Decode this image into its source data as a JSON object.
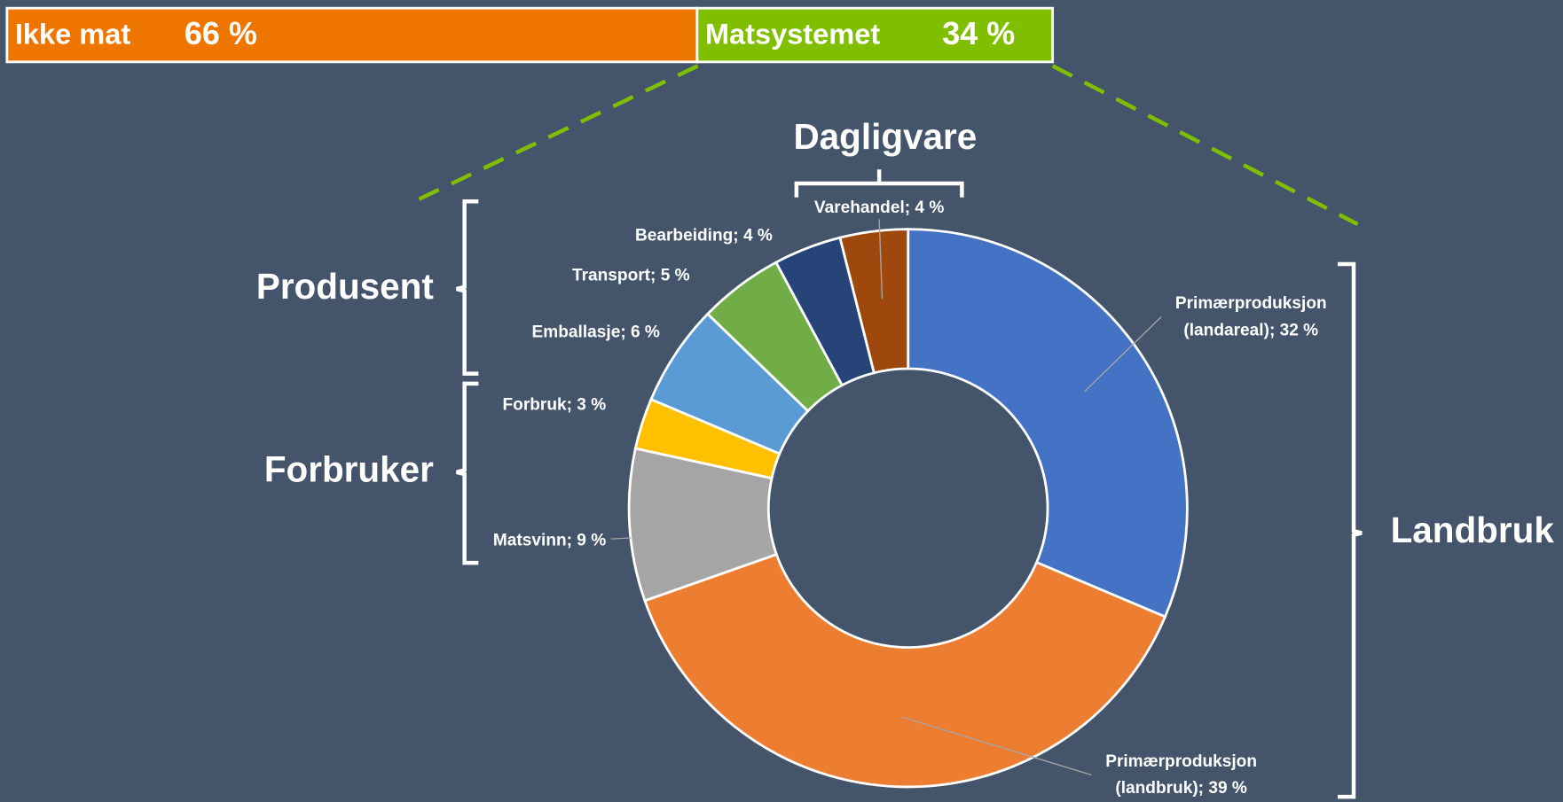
{
  "chart_data": [
    {
      "type": "bar",
      "orientation": "horizontal",
      "stacked": true,
      "series": [
        {
          "name": "Ikke mat",
          "color": "#ee7600",
          "values": [
            66
          ],
          "value_labels": [
            "66 %"
          ]
        },
        {
          "name": "Matsystemet",
          "color": "#7fbf00",
          "values": [
            34
          ],
          "value_labels": [
            "34 %"
          ]
        }
      ]
    },
    {
      "type": "pie",
      "donut": true,
      "values": [
        32,
        39,
        9,
        3,
        6,
        5,
        4,
        4
      ],
      "value_labels": [
        "Primærproduksjon\n(landareal); 32 %",
        "Primærproduksjon\n(landbruk); 39 %",
        "Matsvinn; 9 %",
        "Forbruk; 3 %",
        "Emballasje; 6 %",
        "Transport; 5 %",
        "Bearbeiding; 4 %",
        "Varehandel; 4 %"
      ],
      "colors": [
        "#4472c4",
        "#ed7d31",
        "#a5a5a5",
        "#ffc000",
        "#5b9bd5",
        "#70ad47",
        "#264478",
        "#9e480e"
      ],
      "annotations": [
        "Dagligvare",
        "Produsent",
        "Forbruker",
        "Landbruk"
      ]
    }
  ]
}
